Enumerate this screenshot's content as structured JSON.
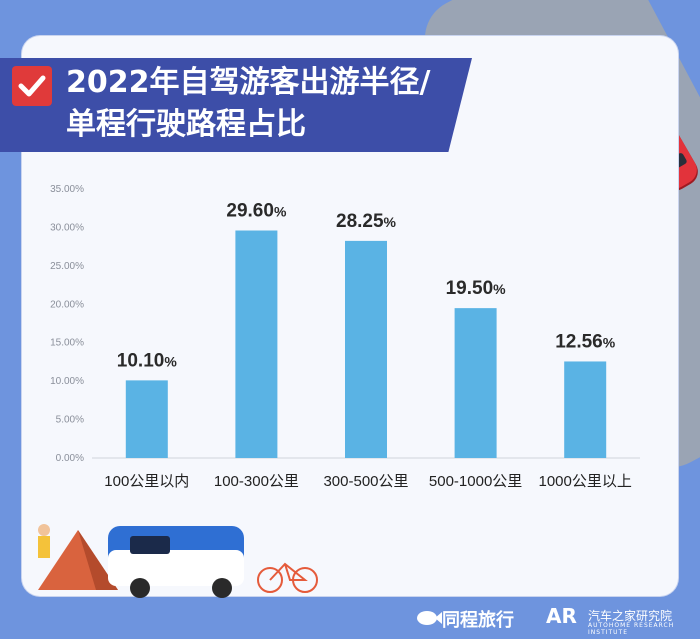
{
  "title": {
    "line1": "2022年自驾游客出游半径/",
    "line2": "单程行驶路程占比"
  },
  "colors": {
    "bar": "#5ab3e4",
    "title_band": "#3d4ea8",
    "check": "#e03a3a",
    "background": "#6e94de"
  },
  "icons": [
    "check-icon",
    "road-arrow-icon",
    "car-icon",
    "fish-logo-icon"
  ],
  "chart_data": {
    "type": "bar",
    "categories": [
      "100公里以内",
      "100-300公里",
      "300-500公里",
      "500-1000公里",
      "1000公里以上"
    ],
    "values": [
      10.1,
      29.6,
      28.25,
      19.5,
      12.56
    ],
    "data_labels": [
      "10.10",
      "29.60",
      "28.25",
      "19.50",
      "12.56"
    ],
    "data_label_unit": "%",
    "y_ticks": [
      "0.00%",
      "5.00%",
      "10.00%",
      "15.00%",
      "20.00%",
      "25.00%",
      "30.00%",
      "35.00%"
    ],
    "ylim": [
      0,
      35
    ],
    "grid": false,
    "legend": "none"
  },
  "footer": {
    "logo1": "同程旅行",
    "logo2_mark": "AR",
    "logo2": "汽车之家研究院",
    "logo2_sub": "AUTOHOME RESEARCH INSTITUTE"
  }
}
